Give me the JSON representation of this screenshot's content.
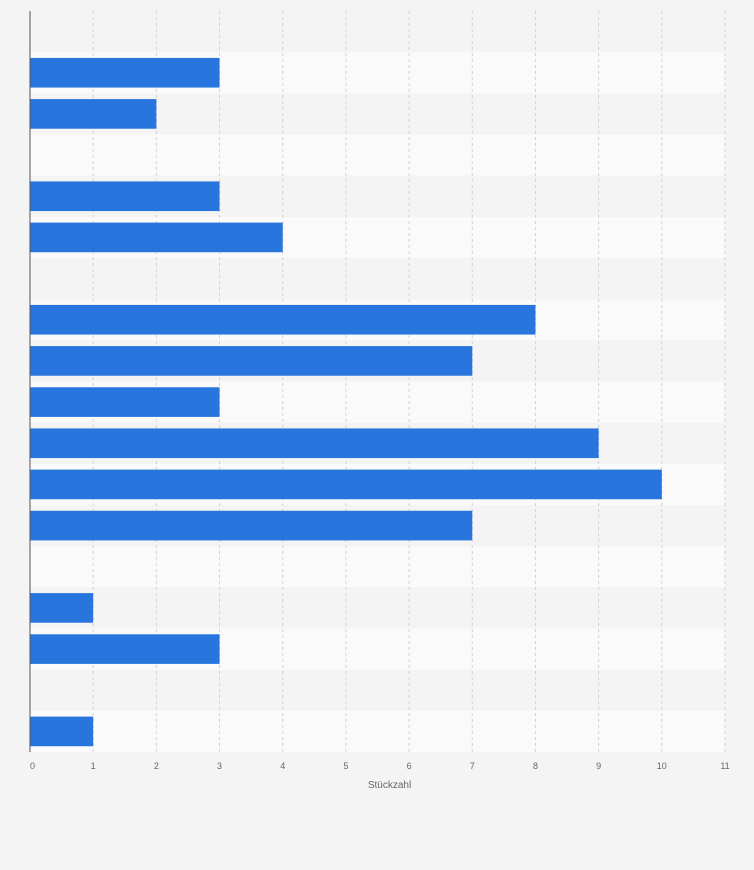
{
  "chart_data": {
    "type": "bar",
    "orientation": "horizontal",
    "categories": [
      "",
      "",
      "",
      "",
      "",
      "",
      "",
      "",
      "",
      "",
      "",
      "",
      "",
      "",
      "",
      "",
      "",
      ""
    ],
    "values": [
      null,
      3,
      2,
      null,
      3,
      4,
      null,
      8,
      7,
      3,
      9,
      10,
      7,
      null,
      1,
      3,
      null,
      1
    ],
    "title": "",
    "xlabel": "Stückzahl",
    "ylabel": "",
    "xlim": [
      0,
      11
    ],
    "xticks": [
      "0",
      "1",
      "2",
      "3",
      "4",
      "5",
      "6",
      "7",
      "8",
      "9",
      "10",
      "11"
    ],
    "grid": "vertical dashed",
    "bar_color": "#2876dd",
    "stripe_colors": [
      "#f4f4f4",
      "#fafafa"
    ]
  }
}
